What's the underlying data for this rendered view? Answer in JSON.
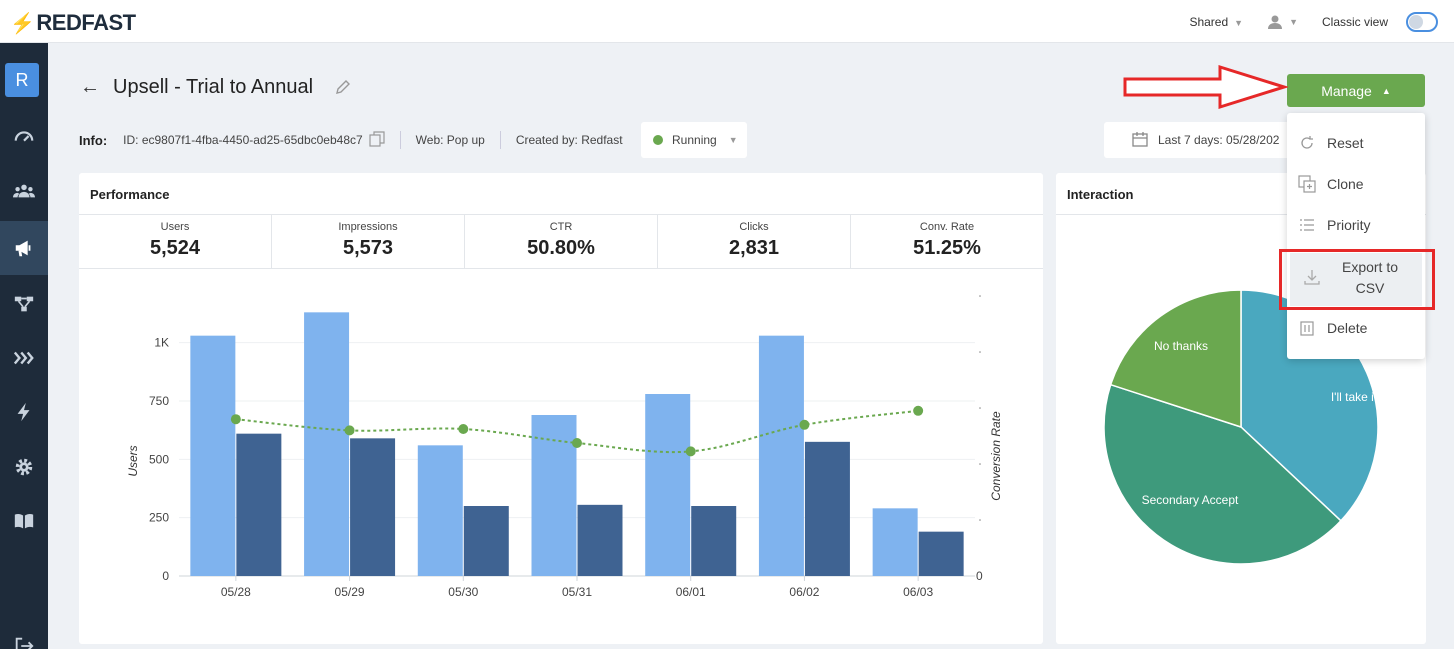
{
  "app": {
    "brand": "REDFAST",
    "shared_label": "Shared",
    "classic_view_label": "Classic view",
    "avatar_letter": "R"
  },
  "sidebar": {
    "items": [
      "dashboard-icon",
      "audience-icon",
      "campaigns-icon",
      "flows-icon",
      "sequences-icon",
      "triggers-icon",
      "settings-icon",
      "docs-icon"
    ]
  },
  "header": {
    "title": "Upsell - Trial to Annual",
    "info_label": "Info:",
    "id_text": "ID: ec9807f1-4fba-4450-ad25-65dbc0eb48c7",
    "web_text": "Web: Pop up",
    "created_by": "Created by: Redfast",
    "status": "Running",
    "date_range": "Last 7 days: 05/28/202",
    "manage_label": "Manage"
  },
  "manage_menu": {
    "items": [
      "Reset",
      "Clone",
      "Priority",
      "Export to CSV",
      "Delete"
    ],
    "export_line1": "Export to",
    "export_line2": "CSV"
  },
  "performance": {
    "title": "Performance",
    "stats": [
      {
        "label": "Users",
        "value": "5,524"
      },
      {
        "label": "Impressions",
        "value": "5,573"
      },
      {
        "label": "CTR",
        "value": "50.80%"
      },
      {
        "label": "Clicks",
        "value": "2,831"
      },
      {
        "label": "Conv. Rate",
        "value": "51.25%"
      }
    ]
  },
  "interaction": {
    "title": "Interaction"
  },
  "chart_data": [
    {
      "type": "bar",
      "categories": [
        "05/28",
        "05/29",
        "05/30",
        "05/31",
        "06/01",
        "06/02",
        "06/03"
      ],
      "series": [
        {
          "values": [
            1030,
            1130,
            560,
            690,
            780,
            1030,
            290
          ],
          "color": "#7fb3ee"
        },
        {
          "values": [
            610,
            590,
            300,
            305,
            300,
            575,
            190
          ],
          "color": "#3f6392"
        },
        {
          "values": [
            0.56,
            0.52,
            0.525,
            0.475,
            0.445,
            0.54,
            0.59
          ],
          "color": "#6aa84f",
          "style": "dotted-line",
          "axis": "right"
        }
      ],
      "ylabel": "Users",
      "y2label": "Conversion Rate",
      "yticks": [
        "0",
        "250",
        "500",
        "750",
        "1K"
      ],
      "y2ticks": [
        "0"
      ],
      "ylim": [
        0,
        1200
      ],
      "y2lim": [
        0,
        1.0
      ],
      "grid": true
    },
    {
      "type": "pie",
      "slices": [
        {
          "label": "I'll take it",
          "value": 37,
          "color": "#4aa8bf"
        },
        {
          "label": "Secondary Accept",
          "value": 43,
          "color": "#3e9a7c"
        },
        {
          "label": "No thanks",
          "value": 20,
          "color": "#6aa84f"
        }
      ]
    }
  ]
}
